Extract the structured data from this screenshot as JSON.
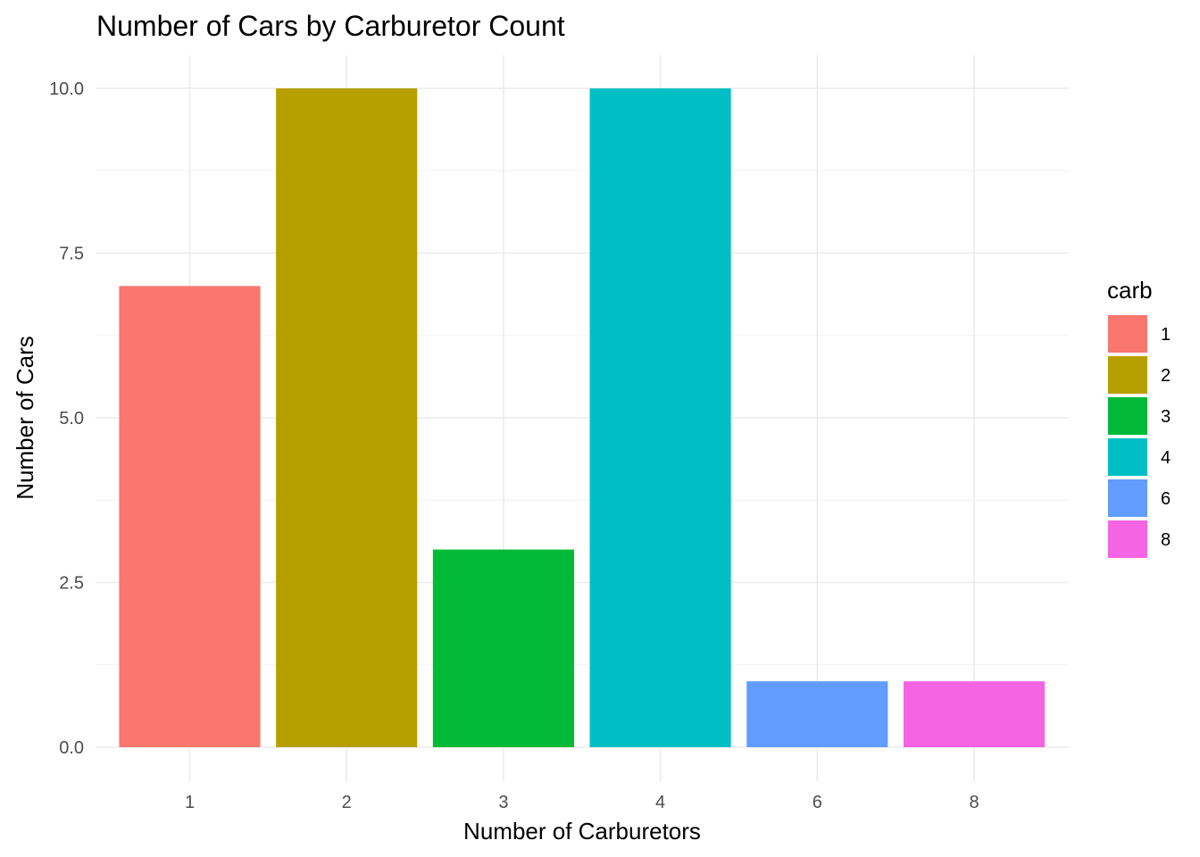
{
  "chart_data": {
    "type": "bar",
    "title": "Number of Cars by Carburetor Count",
    "xlabel": "Number of Carburetors",
    "ylabel": "Number of Cars",
    "categories": [
      "1",
      "2",
      "3",
      "4",
      "6",
      "8"
    ],
    "values": [
      7,
      10,
      3,
      10,
      1,
      1
    ],
    "colors": [
      "#F8766D",
      "#B79F00",
      "#00BA38",
      "#00BFC4",
      "#619CFF",
      "#F564E3"
    ],
    "ylim": [
      0,
      10
    ],
    "yticks": [
      0,
      2.5,
      5,
      7.5,
      10
    ],
    "ytick_labels": [
      "0.0",
      "2.5",
      "5.0",
      "7.5",
      "10.0"
    ],
    "grid": true,
    "legend": {
      "title": "carb",
      "placement": "right",
      "entries": [
        "1",
        "2",
        "3",
        "4",
        "6",
        "8"
      ]
    }
  }
}
